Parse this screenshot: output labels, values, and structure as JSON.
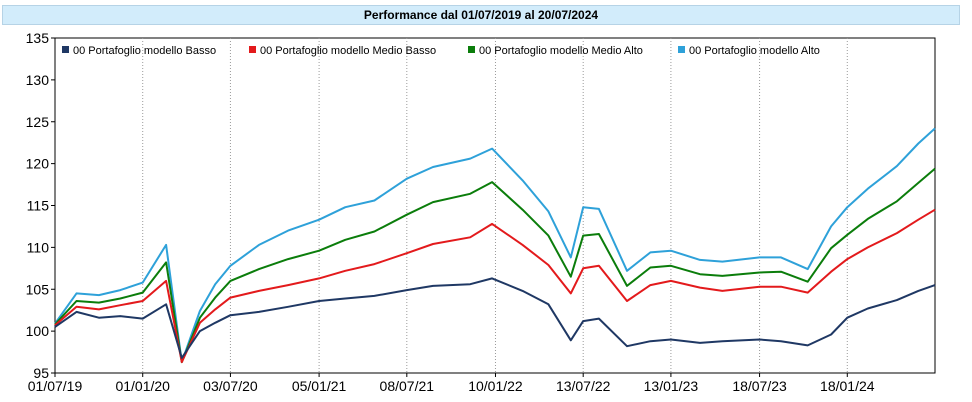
{
  "chart_data": {
    "type": "line",
    "title": "Performance dal 01/07/2019 al 20/07/2024",
    "x_tick_labels": [
      "01/07/19",
      "01/01/20",
      "03/07/20",
      "05/01/21",
      "08/07/21",
      "10/01/22",
      "13/07/22",
      "13/01/23",
      "18/07/23",
      "18/01/24"
    ],
    "y_ticks": [
      95,
      100,
      105,
      110,
      115,
      120,
      125,
      130,
      135
    ],
    "ylim": [
      95,
      135
    ],
    "xlim": [
      "2019-07-01",
      "2024-07-20"
    ],
    "grid": "vertical",
    "legend_position": "top",
    "x": [
      "2019-07-01",
      "2019-08-15",
      "2019-10-01",
      "2019-11-15",
      "2020-01-01",
      "2020-02-19",
      "2020-03-23",
      "2020-04-30",
      "2020-06-01",
      "2020-07-03",
      "2020-09-01",
      "2020-11-01",
      "2021-01-05",
      "2021-03-01",
      "2021-05-01",
      "2021-07-08",
      "2021-09-01",
      "2021-11-18",
      "2022-01-03",
      "2022-03-08",
      "2022-05-01",
      "2022-06-17",
      "2022-07-13",
      "2022-08-15",
      "2022-10-13",
      "2022-12-01",
      "2023-01-13",
      "2023-03-15",
      "2023-05-01",
      "2023-07-18",
      "2023-09-01",
      "2023-10-27",
      "2023-12-15",
      "2024-01-18",
      "2024-03-01",
      "2024-05-01",
      "2024-06-15",
      "2024-07-20"
    ],
    "series": [
      {
        "name": "00 Portafoglio modello Basso",
        "color": "#1f3864",
        "values": [
          100.5,
          102.3,
          101.6,
          101.8,
          101.5,
          103.2,
          96.8,
          100.0,
          101.0,
          101.9,
          102.3,
          102.9,
          103.6,
          103.9,
          104.2,
          104.9,
          105.4,
          105.6,
          106.3,
          104.8,
          103.2,
          98.9,
          101.2,
          101.5,
          98.2,
          98.8,
          99.0,
          98.6,
          98.8,
          99.0,
          98.8,
          98.3,
          99.6,
          101.6,
          102.7,
          103.7,
          104.8,
          105.5
        ]
      },
      {
        "name": "00 Portafoglio modello Medio Basso",
        "color": "#e31a1c",
        "values": [
          100.7,
          102.9,
          102.6,
          103.1,
          103.6,
          106.0,
          96.3,
          101.0,
          102.6,
          104.0,
          104.8,
          105.5,
          106.3,
          107.2,
          108.0,
          109.3,
          110.4,
          111.2,
          112.8,
          110.3,
          107.9,
          104.5,
          107.5,
          107.8,
          103.6,
          105.5,
          106.0,
          105.2,
          104.8,
          105.3,
          105.3,
          104.6,
          107.1,
          108.6,
          110.0,
          111.7,
          113.3,
          114.5
        ]
      },
      {
        "name": "00 Portafoglio modello Medio Alto",
        "color": "#0b7d0b",
        "values": [
          100.8,
          103.6,
          103.4,
          103.9,
          104.6,
          108.2,
          96.3,
          101.6,
          104.0,
          106.0,
          107.4,
          108.6,
          109.6,
          110.9,
          111.9,
          113.9,
          115.4,
          116.4,
          117.8,
          114.5,
          111.4,
          106.5,
          111.4,
          111.6,
          105.4,
          107.6,
          107.8,
          106.8,
          106.6,
          107.0,
          107.1,
          105.9,
          109.9,
          111.5,
          113.4,
          115.5,
          117.7,
          119.4
        ]
      },
      {
        "name": "00 Portafoglio modello Alto",
        "color": "#2ea1d9",
        "values": [
          100.9,
          104.5,
          104.3,
          104.9,
          105.8,
          110.3,
          96.3,
          102.4,
          105.6,
          107.8,
          110.3,
          112.0,
          113.3,
          114.8,
          115.6,
          118.2,
          119.6,
          120.6,
          121.8,
          118.0,
          114.3,
          108.8,
          114.8,
          114.6,
          107.2,
          109.4,
          109.6,
          108.5,
          108.3,
          108.8,
          108.8,
          107.4,
          112.5,
          114.8,
          117.0,
          119.7,
          122.4,
          124.2
        ]
      }
    ]
  }
}
